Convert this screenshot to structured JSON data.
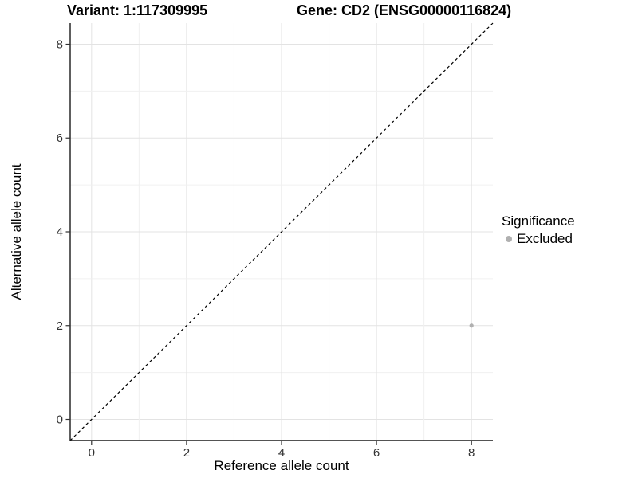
{
  "titles": {
    "left": "Variant: 1:117309995",
    "right": "Gene: CD2 (ENSG00000116824)"
  },
  "chart_data": {
    "type": "scatter",
    "xlabel": "Reference allele count",
    "ylabel": "Alternative allele count",
    "xlim": [
      -0.45,
      8.45
    ],
    "ylim": [
      -0.45,
      8.45
    ],
    "xticks": [
      0,
      2,
      4,
      6,
      8
    ],
    "yticks": [
      0,
      2,
      4,
      6,
      8
    ],
    "grid": {
      "on": true,
      "major_every": 2,
      "minor_every": 1,
      "major_color": "#e3e3e3",
      "minor_color": "#f0f0f0"
    },
    "identity_line": {
      "style": "dashed",
      "color": "#000000",
      "from": [
        -0.45,
        -0.45
      ],
      "to": [
        8.45,
        8.45
      ]
    },
    "series": [
      {
        "name": "Excluded",
        "color": "#b0b0b0",
        "points": [
          {
            "x": 8,
            "y": 2
          }
        ]
      }
    ],
    "legend": {
      "title": "Significance",
      "position": "right",
      "items": [
        {
          "label": "Excluded",
          "color": "#b0b0b0",
          "marker": "circle"
        }
      ]
    },
    "axis_color": "#1a1a1a",
    "tick_label_color": "#333333"
  }
}
